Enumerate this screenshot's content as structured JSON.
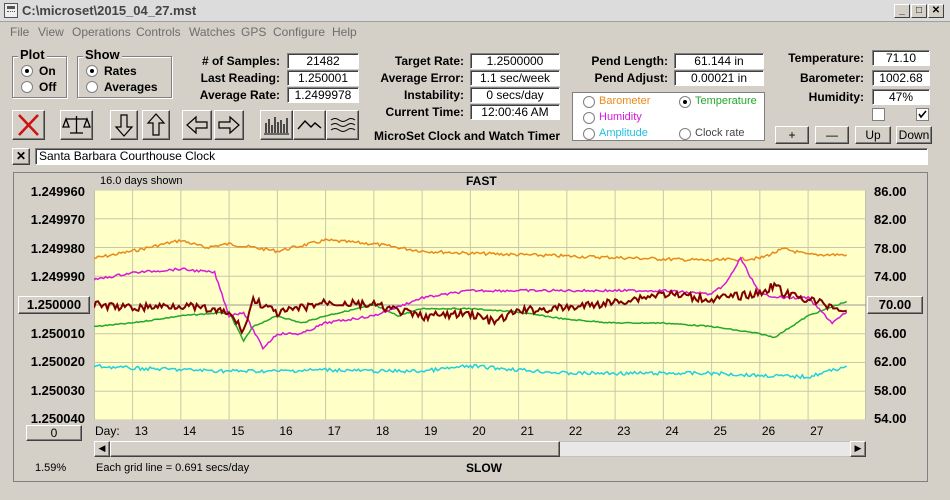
{
  "window": {
    "title": "C:\\microset\\2015_04_27.mst"
  },
  "menu": [
    "File",
    "View",
    "Operations",
    "Controls",
    "Watches",
    "GPS",
    "Configure",
    "Help"
  ],
  "plot": {
    "title": "Plot",
    "on": "On",
    "off": "Off"
  },
  "show": {
    "title": "Show",
    "rates": "Rates",
    "averages": "Averages"
  },
  "stats": {
    "samples_label": "# of Samples:",
    "samples": "21482",
    "last_label": "Last Reading:",
    "last": "1.250001",
    "avg_label": "Average Rate:",
    "avg": "1.2499978"
  },
  "rate": {
    "target_label": "Target Rate:",
    "target": "1.2500000",
    "avgerr_label": "Average Error:",
    "avgerr": "1.1 sec/week",
    "instab_label": "Instability:",
    "instab": "0 secs/day",
    "time_label": "Current Time:",
    "time": "12:00:46 AM",
    "app_name": "MicroSet Clock and Watch Timer"
  },
  "pend": {
    "length_label": "Pend Length:",
    "length": "61.144 in",
    "adjust_label": "Pend Adjust:",
    "adjust": "0.00021 in"
  },
  "env": {
    "temp_label": "Temperature:",
    "temp": "71.10",
    "baro_label": "Barometer:",
    "baro": "1002.68",
    "hum_label": "Humidity:",
    "hum": "47%"
  },
  "overlay": {
    "barometer": "Barometer",
    "temperature": "Temperature",
    "humidity": "Humidity",
    "amplitude": "Amplitude",
    "clock_rate": "Clock rate",
    "colors": {
      "barometer": "#e88a1a",
      "temperature": "#22a82a",
      "humidity": "#d818d8",
      "amplitude": "#20d0e0",
      "rate": "#800000"
    }
  },
  "scale_buttons": {
    "plus": "+",
    "minus": "—",
    "up": "Up",
    "down": "Down"
  },
  "clock_name": "Santa Barbara Courthouse Clock",
  "chart": {
    "days_shown": "16.0 days shown",
    "fast": "FAST",
    "slow": "SLOW",
    "left_ticks": [
      "1.249960",
      "1.249970",
      "1.249980",
      "1.249990",
      "1.250000",
      "1.250010",
      "1.250020",
      "1.250030",
      "1.250040"
    ],
    "right_ticks": [
      "86.00",
      "82.00",
      "78.00",
      "74.00",
      "70.00",
      "66.00",
      "62.00",
      "58.00",
      "54.00"
    ],
    "left_center": "1.250000",
    "right_center": "70.00",
    "offset_btn": "0",
    "day_label": "Day:",
    "days": [
      "13",
      "14",
      "15",
      "16",
      "17",
      "18",
      "19",
      "20",
      "21",
      "22",
      "23",
      "24",
      "25",
      "26",
      "27"
    ],
    "grid_note": "Each grid line = 0.691 secs/day",
    "percent": "1.59%"
  },
  "chart_data": {
    "type": "line",
    "xlabel": "Day:",
    "x_range": [
      12.2,
      28.2
    ],
    "ylim_left": [
      1.24996,
      1.25004
    ],
    "ylim_right": [
      54,
      86
    ],
    "series": [
      {
        "name": "Barometer",
        "axis": "right",
        "x": [
          12.2,
          13,
          14,
          14.5,
          15,
          16,
          17,
          18,
          19,
          20,
          21,
          22,
          23,
          24,
          25,
          26,
          26.5,
          27,
          27.8
        ],
        "values": [
          76.5,
          77.5,
          79,
          78,
          78.5,
          77.5,
          79,
          78.5,
          77.5,
          77.2,
          77,
          76.8,
          76.6,
          76.4,
          76.2,
          76.5,
          77.8,
          77,
          77
        ]
      },
      {
        "name": "Temperature",
        "axis": "right",
        "x": [
          12.2,
          13,
          14,
          15,
          15.3,
          15.5,
          16,
          16.5,
          17,
          18,
          18.5,
          19,
          20,
          21,
          22,
          23,
          24,
          25,
          26,
          26.3,
          27,
          27.8
        ],
        "values": [
          67,
          67.5,
          68.5,
          69,
          65,
          67,
          68.5,
          67.5,
          68.5,
          70,
          68.5,
          69.5,
          69.5,
          69,
          68,
          67.5,
          67.5,
          67,
          66,
          65.5,
          68.5,
          70.5
        ]
      },
      {
        "name": "Humidity",
        "axis": "right",
        "x": [
          12.2,
          13,
          14,
          14.7,
          15,
          15.3,
          15.7,
          16,
          16.5,
          17,
          18,
          19,
          20,
          21,
          22,
          23,
          24,
          25,
          25.3,
          25.6,
          26,
          26.5,
          27,
          27.5,
          27.8
        ],
        "values": [
          73.5,
          74.5,
          75,
          74.5,
          68.5,
          69,
          64,
          66,
          66,
          67.5,
          68.5,
          71,
          72,
          72,
          72,
          72,
          72,
          71.5,
          73,
          76.5,
          71.5,
          71,
          71,
          67.5,
          69
        ]
      },
      {
        "name": "Amplitude",
        "axis": "right",
        "x": [
          12.2,
          13,
          14,
          15,
          16,
          17,
          18,
          19,
          20,
          21,
          22,
          23,
          24,
          25,
          26,
          27,
          27.8
        ],
        "values": [
          61.5,
          61.2,
          61,
          60.8,
          60.8,
          61,
          60.8,
          60.8,
          61.5,
          61,
          60.5,
          60.5,
          60.5,
          60.5,
          60.2,
          60,
          61.5
        ]
      },
      {
        "name": "Clock rate",
        "axis": "left",
        "x": [
          12.2,
          13,
          14,
          14.7,
          15,
          15.3,
          15.5,
          16,
          17,
          18,
          19,
          20,
          20.5,
          21,
          22,
          23,
          24,
          25,
          26,
          26.3,
          26.5,
          27,
          27.8
        ],
        "values": [
          1.25,
          1.250001,
          1.25,
          1.250002,
          1.250003,
          1.250009,
          1.249998,
          1.250003,
          1.249999,
          1.25,
          1.250004,
          1.250003,
          1.250006,
          1.250002,
          1.250001,
          1.249999,
          1.249996,
          1.249998,
          1.249996,
          1.249993,
          1.249996,
          1.249998,
          1.250002
        ]
      }
    ]
  }
}
